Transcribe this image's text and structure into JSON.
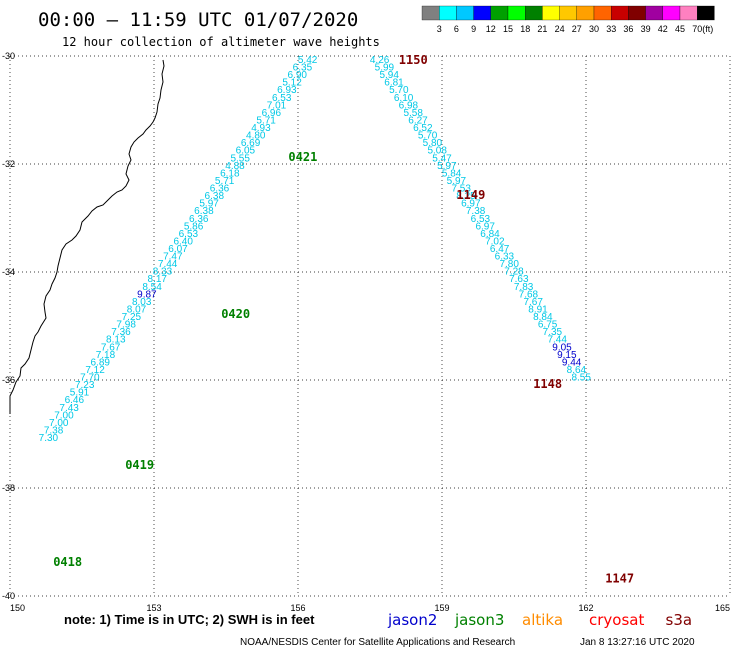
{
  "chart_data": {
    "type": "scatter",
    "title": "00:00 – 11:59 UTC 01/07/2020",
    "subtitle": "12 hour collection of altimeter wave heights",
    "xlim": [
      150,
      165
    ],
    "ylim": [
      -40,
      -30
    ],
    "x_ticks": [
      150,
      153,
      156,
      159,
      162,
      165
    ],
    "x_tick_labels": [
      "150",
      "153",
      "156",
      "159",
      "162",
      "165"
    ],
    "y_ticks": [
      -30,
      -32,
      -34,
      -36,
      -38,
      -40
    ],
    "y_tick_labels": [
      "-30",
      "-32",
      "-34",
      "-36",
      "-38",
      "-40"
    ],
    "grid": true,
    "colorbar": {
      "labels": [
        "3",
        "6",
        "9",
        "12",
        "15",
        "18",
        "21",
        "24",
        "27",
        "30",
        "33",
        "36",
        "39",
        "42",
        "45",
        "70",
        "(ft)"
      ],
      "colors": [
        "#808080",
        "#00ffff",
        "#00c8ff",
        "#0000ff",
        "#00a000",
        "#00ff00",
        "#008000",
        "#ffff00",
        "#ffc800",
        "#ffa000",
        "#ff6400",
        "#c80000",
        "#800000",
        "#a000a0",
        "#ff00ff",
        "#ff80c0",
        "#000000"
      ]
    },
    "note": "note: 1) Time is in UTC; 2) SWH is in feet",
    "satellites": [
      {
        "name": "jason2",
        "color": "#0000cc"
      },
      {
        "name": "jason3",
        "color": "#008000"
      },
      {
        "name": "altika",
        "color": "#ff8c00"
      },
      {
        "name": "cryosat",
        "color": "#ff0000"
      },
      {
        "name": "s3a",
        "color": "#800000"
      }
    ],
    "footer": "NOAA/NESDIS Center for Satellite Applications and Research",
    "timestamp": "Jan  8 13:27:16 UTC 2020",
    "tracks": [
      {
        "satellite": "jason3",
        "times": [
          {
            "label": "0421",
            "lon": 155.8,
            "lat": -31.8
          },
          {
            "label": "0420",
            "lon": 154.4,
            "lat": -34.7
          },
          {
            "label": "0419",
            "lon": 152.4,
            "lat": -37.5
          },
          {
            "label": "0418",
            "lon": 150.9,
            "lat": -39.3
          }
        ],
        "points": [
          {
            "lat": -30.0,
            "value": "5.42",
            "c": "cyan"
          },
          {
            "lat": -30.14,
            "value": "6.35",
            "c": "cyan"
          },
          {
            "lat": -30.28,
            "value": "6.90",
            "c": "cyan"
          },
          {
            "lat": -30.42,
            "value": "5.12",
            "c": "cyan"
          },
          {
            "lat": -30.56,
            "value": "6.93",
            "c": "cyan"
          },
          {
            "lat": -30.7,
            "value": "6.53",
            "c": "cyan"
          },
          {
            "lat": -30.84,
            "value": "7.01",
            "c": "cyan"
          },
          {
            "lat": -30.98,
            "value": "6.96",
            "c": "cyan"
          },
          {
            "lat": -31.12,
            "value": "5.71",
            "c": "cyan"
          },
          {
            "lat": -31.26,
            "value": "4.93",
            "c": "cyan"
          },
          {
            "lat": -31.4,
            "value": "4.80",
            "c": "cyan"
          },
          {
            "lat": -31.54,
            "value": "6.69",
            "c": "cyan"
          },
          {
            "lat": -31.68,
            "value": "6.05",
            "c": "cyan"
          },
          {
            "lat": -31.82,
            "value": "5.55",
            "c": "cyan"
          },
          {
            "lat": -31.96,
            "value": "4.88",
            "c": "cyan"
          },
          {
            "lat": -32.1,
            "value": "6.18",
            "c": "cyan"
          },
          {
            "lat": -32.24,
            "value": "5.71",
            "c": "cyan"
          },
          {
            "lat": -32.38,
            "value": "6.36",
            "c": "cyan"
          },
          {
            "lat": -32.52,
            "value": "6.38",
            "c": "cyan"
          },
          {
            "lat": -32.66,
            "value": "5.97",
            "c": "cyan"
          },
          {
            "lat": -32.8,
            "value": "6.38",
            "c": "cyan"
          },
          {
            "lat": -32.94,
            "value": "6.36",
            "c": "cyan"
          },
          {
            "lat": -33.08,
            "value": "5.86",
            "c": "cyan"
          },
          {
            "lat": -33.22,
            "value": "6.53",
            "c": "cyan"
          },
          {
            "lat": -33.36,
            "value": "6.40",
            "c": "cyan"
          },
          {
            "lat": -33.5,
            "value": "6.07",
            "c": "cyan"
          },
          {
            "lat": -33.64,
            "value": "7.47",
            "c": "cyan"
          },
          {
            "lat": -33.78,
            "value": "7.44",
            "c": "cyan"
          },
          {
            "lat": -33.92,
            "value": "8.33",
            "c": "cyan"
          },
          {
            "lat": -34.06,
            "value": "8.17",
            "c": "cyan"
          },
          {
            "lat": -34.2,
            "value": "8.54",
            "c": "cyan"
          },
          {
            "lat": -34.34,
            "value": "9.87",
            "c": "blue"
          },
          {
            "lat": -34.48,
            "value": "8.03",
            "c": "cyan"
          },
          {
            "lat": -34.62,
            "value": "8.07",
            "c": "cyan"
          },
          {
            "lat": -34.76,
            "value": "7.25",
            "c": "cyan"
          },
          {
            "lat": -34.9,
            "value": "7.98",
            "c": "cyan"
          },
          {
            "lat": -35.04,
            "value": "7.36",
            "c": "cyan"
          },
          {
            "lat": -35.18,
            "value": "8.13",
            "c": "cyan"
          },
          {
            "lat": -35.32,
            "value": "7.67",
            "c": "cyan"
          },
          {
            "lat": -35.46,
            "value": "7.18",
            "c": "cyan"
          },
          {
            "lat": -35.6,
            "value": "6.89",
            "c": "cyan"
          },
          {
            "lat": -35.74,
            "value": "7.12",
            "c": "cyan"
          },
          {
            "lat": -35.88,
            "value": "7.70",
            "c": "cyan"
          },
          {
            "lat": -36.02,
            "value": "7.23",
            "c": "cyan"
          },
          {
            "lat": -36.16,
            "value": "5.91",
            "c": "cyan"
          },
          {
            "lat": -36.3,
            "value": "6.46",
            "c": "cyan"
          },
          {
            "lat": -36.44,
            "value": "7.43",
            "c": "cyan"
          },
          {
            "lat": -36.58,
            "value": "7.00",
            "c": "cyan"
          },
          {
            "lat": -36.72,
            "value": "7.00",
            "c": "cyan"
          },
          {
            "lat": -36.86,
            "value": "7.38",
            "c": "cyan"
          },
          {
            "lat": -37.0,
            "value": "7.30",
            "c": "cyan"
          }
        ]
      },
      {
        "satellite": "s3a",
        "times": [
          {
            "label": "1150",
            "lon": 158.1,
            "lat": -30.0
          },
          {
            "label": "1149",
            "lon": 159.3,
            "lat": -32.5
          },
          {
            "label": "1148",
            "lon": 160.9,
            "lat": -36.0
          },
          {
            "label": "1147",
            "lon": 162.4,
            "lat": -39.6
          }
        ],
        "points": [
          {
            "lat": -30.0,
            "value": "4.26",
            "c": "cyan"
          },
          {
            "lat": -30.14,
            "value": "5.99",
            "c": "cyan"
          },
          {
            "lat": -30.28,
            "value": "5.94",
            "c": "cyan"
          },
          {
            "lat": -30.42,
            "value": "6.81",
            "c": "cyan"
          },
          {
            "lat": -30.56,
            "value": "5.70",
            "c": "cyan"
          },
          {
            "lat": -30.7,
            "value": "6.10",
            "c": "cyan"
          },
          {
            "lat": -30.84,
            "value": "6.98",
            "c": "cyan"
          },
          {
            "lat": -30.98,
            "value": "5.58",
            "c": "cyan"
          },
          {
            "lat": -31.12,
            "value": "6.27",
            "c": "cyan"
          },
          {
            "lat": -31.26,
            "value": "6.52",
            "c": "cyan"
          },
          {
            "lat": -31.4,
            "value": "5.70",
            "c": "cyan"
          },
          {
            "lat": -31.54,
            "value": "5.80",
            "c": "cyan"
          },
          {
            "lat": -31.68,
            "value": "5.08",
            "c": "cyan"
          },
          {
            "lat": -31.82,
            "value": "5.47",
            "c": "cyan"
          },
          {
            "lat": -31.96,
            "value": "5.97",
            "c": "cyan"
          },
          {
            "lat": -32.1,
            "value": "5.84",
            "c": "cyan"
          },
          {
            "lat": -32.24,
            "value": "5.97",
            "c": "cyan"
          },
          {
            "lat": -32.38,
            "value": "7.53",
            "c": "cyan"
          },
          {
            "lat": -32.52,
            "value": "8.25",
            "c": "cyan"
          },
          {
            "lat": -32.66,
            "value": "6.97",
            "c": "cyan"
          },
          {
            "lat": -32.8,
            "value": "7.38",
            "c": "cyan"
          },
          {
            "lat": -32.94,
            "value": "6.53",
            "c": "cyan"
          },
          {
            "lat": -33.08,
            "value": "6.97",
            "c": "cyan"
          },
          {
            "lat": -33.22,
            "value": "6.84",
            "c": "cyan"
          },
          {
            "lat": -33.36,
            "value": "7.02",
            "c": "cyan"
          },
          {
            "lat": -33.5,
            "value": "6.47",
            "c": "cyan"
          },
          {
            "lat": -33.64,
            "value": "6.33",
            "c": "cyan"
          },
          {
            "lat": -33.78,
            "value": "7.80",
            "c": "cyan"
          },
          {
            "lat": -33.92,
            "value": "7.28",
            "c": "cyan"
          },
          {
            "lat": -34.06,
            "value": "7.63",
            "c": "cyan"
          },
          {
            "lat": -34.2,
            "value": "7.83",
            "c": "cyan"
          },
          {
            "lat": -34.34,
            "value": "7.68",
            "c": "cyan"
          },
          {
            "lat": -34.48,
            "value": "7.67",
            "c": "cyan"
          },
          {
            "lat": -34.62,
            "value": "8.91",
            "c": "cyan"
          },
          {
            "lat": -34.76,
            "value": "8.84",
            "c": "cyan"
          },
          {
            "lat": -34.9,
            "value": "6.75",
            "c": "cyan"
          },
          {
            "lat": -35.04,
            "value": "7.35",
            "c": "cyan"
          },
          {
            "lat": -35.18,
            "value": "7.44",
            "c": "cyan"
          },
          {
            "lat": -35.32,
            "value": "9.05",
            "c": "blue"
          },
          {
            "lat": -35.46,
            "value": "9.15",
            "c": "blue"
          },
          {
            "lat": -35.6,
            "value": "9.44",
            "c": "blue"
          },
          {
            "lat": -35.74,
            "value": "8.64",
            "c": "cyan"
          },
          {
            "lat": -35.88,
            "value": "8.55",
            "c": "cyan"
          }
        ]
      }
    ]
  }
}
